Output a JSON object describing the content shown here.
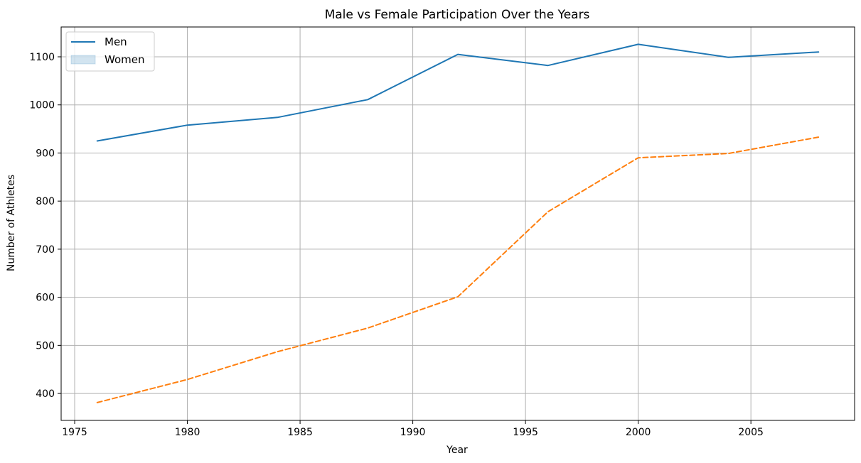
{
  "chart_data": {
    "type": "line",
    "title": "Male vs Female Participation Over the Years",
    "xlabel": "Year",
    "ylabel": "Number of Athletes",
    "xlim": [
      1974.4,
      2009.6
    ],
    "ylim": [
      344,
      1162
    ],
    "x_ticks": [
      1975,
      1980,
      1985,
      1990,
      1995,
      2000,
      2005
    ],
    "y_ticks": [
      400,
      500,
      600,
      700,
      800,
      900,
      1000,
      1100
    ],
    "grid": true,
    "legend_position": "top-left",
    "x": [
      1976,
      1980,
      1984,
      1988,
      1992,
      1996,
      2000,
      2004,
      2008
    ],
    "series": [
      {
        "name": "Men",
        "values": [
          925,
          958,
          974,
          1011,
          1105,
          1082,
          1126,
          1099,
          1110
        ],
        "color": "#1f77b4",
        "style": "solid",
        "legend_symbol": "line"
      },
      {
        "name": "Women",
        "values": [
          381,
          429,
          487,
          536,
          601,
          778,
          890,
          899,
          933
        ],
        "color": "#ff7f0e",
        "style": "dashed",
        "legend_symbol": "patch"
      }
    ]
  }
}
